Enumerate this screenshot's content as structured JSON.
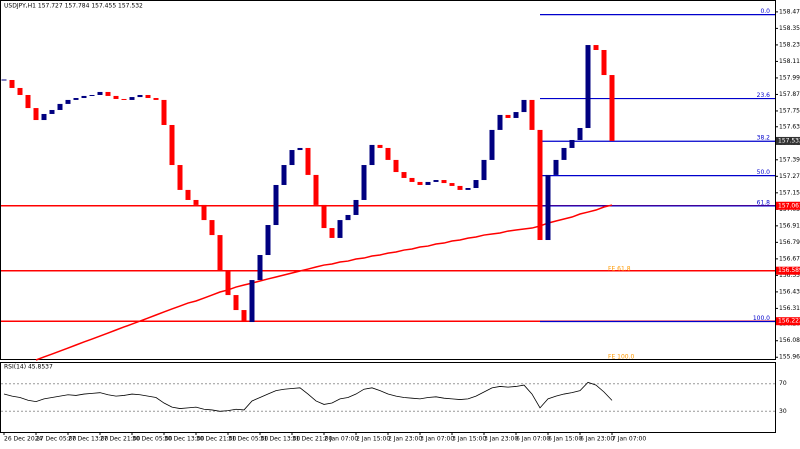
{
  "chart_data": {
    "type": "candlestick",
    "title": "USDJPY,H1 157.727 157.784 157.455 157.532",
    "categories": [
      "26 Dec 2024",
      null,
      null,
      null,
      "27 Dec 05:00",
      null,
      null,
      null,
      "27 Dec 13:00",
      null,
      null,
      null,
      "27 Dec 21:00",
      null,
      null,
      null,
      "30 Dec 05:00",
      null,
      null,
      null,
      "30 Dec 13:00",
      null,
      null,
      null,
      "30 Dec 21:00",
      null,
      null,
      null,
      "31 Dec 05:00",
      null,
      null,
      null,
      "31 Dec 13:00",
      null,
      null,
      null,
      "31 Dec 21:00",
      null,
      null,
      null,
      "2 Jan 07:00",
      null,
      null,
      null,
      "2 Jan 15:00",
      null,
      null,
      null,
      "2 Jan 23:00",
      null,
      null,
      null,
      "3 Jan 07:00",
      null,
      null,
      null,
      "3 Jan 15:00",
      null,
      null,
      null,
      "3 Jan 23:00",
      null,
      null,
      null,
      "6 Jan 07:00",
      null,
      null,
      null,
      "6 Jan 15:00",
      null,
      null,
      null,
      "6 Jan 23:00",
      null,
      null,
      null,
      "7 Jan 07:00"
    ],
    "values": [
      157.975,
      157.917,
      157.866,
      157.771,
      157.684,
      157.728,
      157.757,
      157.801,
      157.83,
      157.844,
      157.859,
      157.866,
      157.888,
      157.859,
      157.837,
      157.83,
      157.851,
      157.866,
      157.844,
      157.83,
      157.648,
      157.357,
      157.176,
      157.103,
      157.067,
      156.957,
      156.848,
      156.594,
      156.412,
      156.303,
      156.216,
      156.521,
      156.703,
      156.921,
      157.212,
      157.357,
      157.466,
      157.481,
      157.285,
      157.067,
      156.899,
      156.827,
      156.957,
      156.994,
      157.103,
      157.357,
      157.503,
      157.481,
      157.394,
      157.306,
      157.263,
      157.234,
      157.212,
      157.234,
      157.248,
      157.226,
      157.205,
      157.176,
      157.19,
      157.248,
      157.394,
      157.612,
      157.721,
      157.699,
      157.742,
      157.83,
      157.612,
      156.812,
      157.285,
      157.394,
      157.481,
      157.539,
      157.626,
      158.229,
      158.193,
      158.011,
      157.532
    ],
    "up_color": "#000080",
    "down_color": "#ff0000",
    "ma_values": [
      null,
      null,
      null,
      null,
      155.94,
      155.962,
      155.983,
      156.005,
      156.027,
      156.049,
      156.071,
      156.092,
      156.114,
      156.136,
      156.158,
      156.18,
      156.201,
      156.223,
      156.245,
      156.267,
      156.289,
      156.311,
      156.332,
      156.354,
      156.369,
      156.39,
      156.412,
      156.434,
      156.449,
      156.47,
      156.485,
      156.499,
      156.514,
      156.529,
      156.543,
      156.558,
      156.572,
      156.587,
      156.601,
      156.616,
      156.63,
      156.638,
      156.652,
      156.659,
      156.674,
      156.681,
      156.696,
      156.703,
      156.717,
      156.725,
      156.739,
      156.747,
      156.761,
      156.768,
      156.783,
      156.79,
      156.805,
      156.812,
      156.826,
      156.834,
      156.848,
      156.856,
      156.863,
      156.877,
      156.885,
      156.892,
      156.899,
      156.914,
      156.935,
      156.95,
      156.965,
      156.979,
      157.001,
      157.015,
      157.03,
      157.052,
      157.066
    ],
    "ma_color": "#ff0000",
    "ylim": [
      155.94,
      158.52
    ],
    "yticks": [
      {
        "value": 158.47,
        "label": "158.470"
      },
      {
        "value": 158.35,
        "label": "158.350"
      },
      {
        "value": 158.23,
        "label": "158.230"
      },
      {
        "value": 158.11,
        "label": "158.110"
      },
      {
        "value": 157.99,
        "label": "157.990"
      },
      {
        "value": 157.87,
        "label": "157.870"
      },
      {
        "value": 157.75,
        "label": "157.750"
      },
      157.635,
      157.515,
      157.395,
      157.275,
      157.155,
      157.035,
      156.915,
      156.795,
      156.675,
      156.555,
      156.435,
      156.315,
      {
        "value": 156.2,
        "label": "156.200"
      },
      {
        "value": 156.08,
        "label": "156.080"
      },
      {
        "value": 155.96,
        "label": "155.960"
      }
    ],
    "levels": [
      157.061,
      156.589,
      156.222
    ],
    "level_color": "#ff0000",
    "fib_levels": [
      {
        "label": "0.0",
        "value": 158.45
      },
      {
        "label": "23.6",
        "value": 157.84
      },
      {
        "label": "38.2",
        "value": 157.53
      },
      {
        "label": "50.0",
        "value": 157.28
      },
      {
        "label": "61.8",
        "value": 157.06
      },
      {
        "label": "100.0",
        "value": 156.22
      }
    ],
    "fib_color": "#0000cc",
    "fe_labels": [
      {
        "label": "FE 61.8",
        "value": 156.6
      },
      {
        "label": "FE 100.0",
        "value": 155.96
      }
    ],
    "fe_color": "#ff9900",
    "current_price": 157.532,
    "rsi": {
      "title": "RSI(14) 45.8537",
      "values": [
        55,
        52,
        50,
        46,
        44,
        48,
        50,
        52,
        54,
        53,
        55,
        56,
        57,
        54,
        52,
        53,
        55,
        54,
        52,
        50,
        42,
        36,
        34,
        35,
        36,
        33,
        32,
        30,
        31,
        33,
        32,
        45,
        50,
        55,
        60,
        62,
        63,
        64,
        55,
        45,
        40,
        42,
        48,
        50,
        55,
        62,
        64,
        60,
        55,
        52,
        50,
        49,
        48,
        50,
        51,
        49,
        48,
        47,
        48,
        52,
        58,
        64,
        66,
        65,
        66,
        68,
        55,
        35,
        48,
        52,
        55,
        57,
        60,
        72,
        68,
        58,
        45.8537
      ],
      "ylim": [
        0,
        100
      ],
      "yticks": [
        70,
        30
      ]
    }
  }
}
